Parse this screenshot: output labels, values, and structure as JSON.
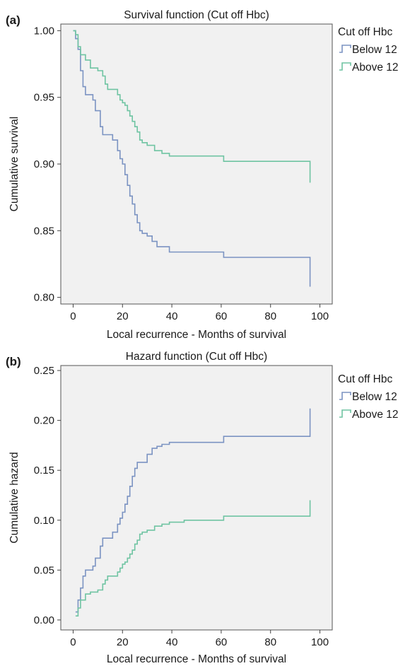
{
  "chart_data": [
    {
      "panel": "(a)",
      "type": "line",
      "step": true,
      "title": "Survival function (Cut off Hbc)",
      "xlabel": "Local recurrence - Months of survival",
      "ylabel": "Cumulative survival",
      "xlim": [
        -5,
        105
      ],
      "ylim": [
        0.795,
        1.005
      ],
      "xticks": [
        0,
        20,
        40,
        60,
        80,
        100
      ],
      "xtick_labels": [
        "0",
        "20",
        "40",
        "60",
        "80",
        "100"
      ],
      "yticks": [
        0.8,
        0.85,
        0.9,
        0.95,
        1.0
      ],
      "ytick_labels": [
        "0.80",
        "0.85",
        "0.90",
        "0.95",
        "1.00"
      ],
      "grid": false,
      "legend": {
        "title": "Cut off Hbc",
        "placement": "right"
      },
      "series": [
        {
          "name": "Below 12",
          "color": "#7b93c2",
          "points": [
            [
              0,
              1.0
            ],
            [
              1,
              0.994
            ],
            [
              2,
              0.986
            ],
            [
              3,
              0.97
            ],
            [
              4,
              0.958
            ],
            [
              5,
              0.952
            ],
            [
              8,
              0.948
            ],
            [
              9,
              0.94
            ],
            [
              11,
              0.928
            ],
            [
              12,
              0.922
            ],
            [
              16,
              0.918
            ],
            [
              18,
              0.91
            ],
            [
              19,
              0.904
            ],
            [
              20,
              0.9
            ],
            [
              21,
              0.892
            ],
            [
              22,
              0.884
            ],
            [
              23,
              0.876
            ],
            [
              24,
              0.87
            ],
            [
              25,
              0.862
            ],
            [
              26,
              0.856
            ],
            [
              27,
              0.85
            ],
            [
              28,
              0.848
            ],
            [
              30,
              0.846
            ],
            [
              32,
              0.842
            ],
            [
              34,
              0.838
            ],
            [
              36,
              0.838
            ],
            [
              39,
              0.834
            ],
            [
              45,
              0.834
            ],
            [
              60,
              0.834
            ],
            [
              61,
              0.83
            ],
            [
              96,
              0.83
            ],
            [
              96,
              0.808
            ]
          ]
        },
        {
          "name": "Above 12",
          "color": "#6fc4a2",
          "points": [
            [
              0,
              1.0
            ],
            [
              1,
              0.997
            ],
            [
              2,
              0.988
            ],
            [
              3,
              0.982
            ],
            [
              5,
              0.978
            ],
            [
              7,
              0.972
            ],
            [
              10,
              0.97
            ],
            [
              12,
              0.966
            ],
            [
              13,
              0.96
            ],
            [
              14,
              0.956
            ],
            [
              18,
              0.952
            ],
            [
              19,
              0.948
            ],
            [
              20,
              0.946
            ],
            [
              21,
              0.944
            ],
            [
              22,
              0.94
            ],
            [
              23,
              0.936
            ],
            [
              24,
              0.932
            ],
            [
              25,
              0.928
            ],
            [
              26,
              0.924
            ],
            [
              27,
              0.918
            ],
            [
              28,
              0.916
            ],
            [
              30,
              0.914
            ],
            [
              33,
              0.91
            ],
            [
              36,
              0.908
            ],
            [
              39,
              0.906
            ],
            [
              45,
              0.906
            ],
            [
              60,
              0.906
            ],
            [
              61,
              0.902
            ],
            [
              96,
              0.902
            ],
            [
              96,
              0.886
            ]
          ]
        }
      ]
    },
    {
      "panel": "(b)",
      "type": "line",
      "step": true,
      "title": "Hazard function (Cut off Hbc)",
      "xlabel": "Local recurrence - Months of survival",
      "ylabel": "Cumulative hazard",
      "xlim": [
        -5,
        105
      ],
      "ylim": [
        -0.01,
        0.255
      ],
      "xticks": [
        0,
        20,
        40,
        60,
        80,
        100
      ],
      "xtick_labels": [
        "0",
        "20",
        "40",
        "60",
        "80",
        "100"
      ],
      "yticks": [
        0.0,
        0.05,
        0.1,
        0.15,
        0.2,
        0.25
      ],
      "ytick_labels": [
        "0.00",
        "0.05",
        "0.10",
        "0.15",
        "0.20",
        "0.25"
      ],
      "grid": false,
      "legend": {
        "title": "Cut off Hbc",
        "placement": "right"
      },
      "series": [
        {
          "name": "Below 12",
          "color": "#7b93c2",
          "points": [
            [
              1,
              0.008
            ],
            [
              2,
              0.02
            ],
            [
              3,
              0.032
            ],
            [
              4,
              0.044
            ],
            [
              5,
              0.05
            ],
            [
              8,
              0.054
            ],
            [
              9,
              0.062
            ],
            [
              11,
              0.074
            ],
            [
              12,
              0.082
            ],
            [
              16,
              0.088
            ],
            [
              18,
              0.096
            ],
            [
              19,
              0.102
            ],
            [
              20,
              0.108
            ],
            [
              21,
              0.116
            ],
            [
              22,
              0.124
            ],
            [
              23,
              0.134
            ],
            [
              24,
              0.144
            ],
            [
              25,
              0.152
            ],
            [
              26,
              0.158
            ],
            [
              30,
              0.166
            ],
            [
              32,
              0.172
            ],
            [
              34,
              0.174
            ],
            [
              36,
              0.176
            ],
            [
              39,
              0.178
            ],
            [
              45,
              0.178
            ],
            [
              60,
              0.178
            ],
            [
              61,
              0.184
            ],
            [
              96,
              0.184
            ],
            [
              96,
              0.212
            ]
          ]
        },
        {
          "name": "Above 12",
          "color": "#6fc4a2",
          "points": [
            [
              1,
              0.004
            ],
            [
              2,
              0.012
            ],
            [
              3,
              0.02
            ],
            [
              5,
              0.026
            ],
            [
              7,
              0.028
            ],
            [
              10,
              0.03
            ],
            [
              12,
              0.036
            ],
            [
              13,
              0.04
            ],
            [
              14,
              0.044
            ],
            [
              18,
              0.048
            ],
            [
              19,
              0.052
            ],
            [
              20,
              0.056
            ],
            [
              21,
              0.058
            ],
            [
              22,
              0.062
            ],
            [
              23,
              0.066
            ],
            [
              24,
              0.07
            ],
            [
              25,
              0.076
            ],
            [
              26,
              0.08
            ],
            [
              27,
              0.086
            ],
            [
              28,
              0.088
            ],
            [
              30,
              0.09
            ],
            [
              33,
              0.094
            ],
            [
              36,
              0.096
            ],
            [
              39,
              0.098
            ],
            [
              45,
              0.1
            ],
            [
              60,
              0.1
            ],
            [
              61,
              0.104
            ],
            [
              96,
              0.104
            ],
            [
              96,
              0.12
            ]
          ]
        }
      ]
    }
  ]
}
